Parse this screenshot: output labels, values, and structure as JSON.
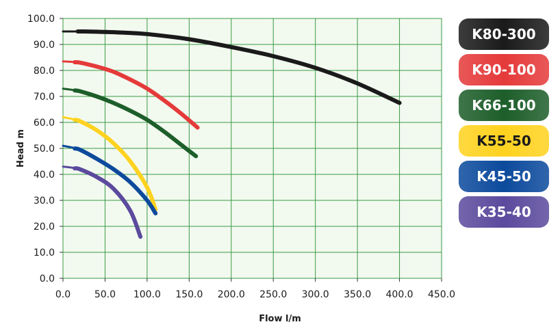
{
  "chart_data": {
    "type": "line",
    "title": "",
    "xlabel": "Flow l/m",
    "ylabel": "Head m",
    "xlim": [
      0,
      450
    ],
    "ylim": [
      0,
      100
    ],
    "grid": true,
    "legend_position": "right",
    "x_ticks": [
      "0.0",
      "50.0",
      "100.0",
      "150.0",
      "200.0",
      "250.0",
      "300.0",
      "350.0",
      "400.0",
      "450.0"
    ],
    "y_ticks": [
      "0.0",
      "10.0",
      "20.0",
      "30.0",
      "40.0",
      "50.0",
      "60.0",
      "70.0",
      "80.0",
      "90.0",
      "100.0"
    ],
    "series": [
      {
        "name": "K80-300",
        "color": "#1a1a1a",
        "text_color": "#ffffff",
        "x": [
          0,
          25,
          50,
          75,
          100,
          150,
          200,
          250,
          300,
          350,
          400
        ],
        "y": [
          95,
          95,
          94.8,
          94.5,
          94,
          92,
          89,
          85.5,
          81,
          75,
          67.5
        ]
      },
      {
        "name": "K90-100",
        "color": "#e53a3a",
        "text_color": "#ffffff",
        "x": [
          0,
          20,
          40,
          60,
          80,
          100,
          120,
          140,
          160
        ],
        "y": [
          83.5,
          83,
          81.5,
          79.5,
          76.5,
          73,
          68.5,
          63.5,
          58
        ]
      },
      {
        "name": "K66-100",
        "color": "#1d5e2a",
        "text_color": "#ffffff",
        "x": [
          0,
          20,
          40,
          60,
          80,
          100,
          120,
          140,
          158
        ],
        "y": [
          73,
          72,
          70,
          67.5,
          64.5,
          61,
          56.5,
          51.5,
          47
        ]
      },
      {
        "name": "K55-50",
        "color": "#ffd21f",
        "text_color": "#1a1a1a",
        "x": [
          0,
          20,
          40,
          60,
          80,
          100,
          110
        ],
        "y": [
          62,
          60.5,
          57,
          52,
          45,
          35,
          26.5
        ]
      },
      {
        "name": "K45-50",
        "color": "#0c4a9c",
        "text_color": "#ffffff",
        "x": [
          0,
          20,
          40,
          60,
          80,
          100,
          110
        ],
        "y": [
          51,
          49.5,
          46,
          42,
          37,
          30,
          25
        ]
      },
      {
        "name": "K35-40",
        "color": "#5b4a9d",
        "text_color": "#ffffff",
        "x": [
          0,
          20,
          40,
          60,
          80,
          92
        ],
        "y": [
          43,
          42,
          39,
          34.5,
          26,
          16
        ]
      }
    ]
  }
}
